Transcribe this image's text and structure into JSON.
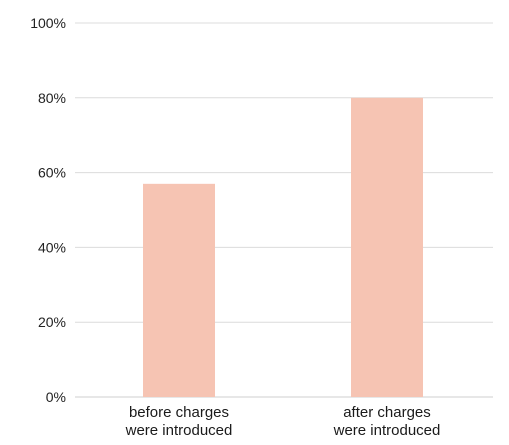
{
  "colors": {
    "bar": "#f6c4b3",
    "grid": "#dcdcdc",
    "axis": "#cfcfcf",
    "text": "#1a1a1a"
  },
  "chart_data": {
    "type": "bar",
    "title": "",
    "xlabel": "",
    "ylabel": "",
    "categories": [
      [
        "before charges",
        "were introduced"
      ],
      [
        "after charges",
        "were introduced"
      ]
    ],
    "values": [
      57,
      80
    ],
    "ylim": [
      0,
      100
    ],
    "yticks": [
      0,
      20,
      40,
      60,
      80,
      100
    ],
    "ytick_labels": [
      "0%",
      "20%",
      "40%",
      "60%",
      "80%",
      "100%"
    ],
    "grid": true,
    "legend": "none"
  }
}
